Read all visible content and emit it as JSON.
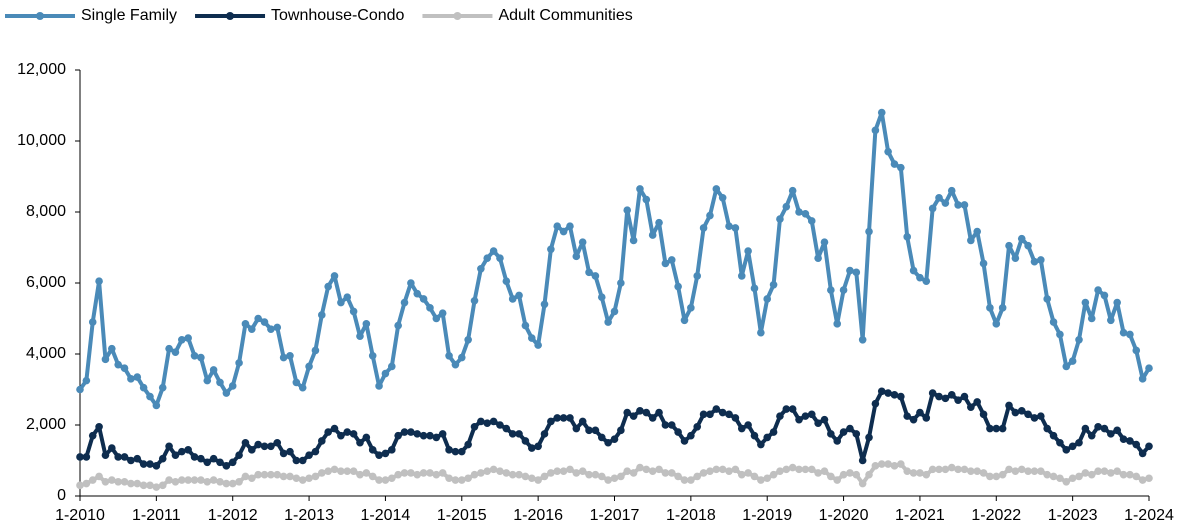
{
  "chart_data": {
    "type": "line",
    "legend": "top-left",
    "categories": [
      "1-2010",
      null,
      null,
      null,
      null,
      null,
      null,
      null,
      null,
      null,
      null,
      null,
      "1-2011",
      null,
      null,
      null,
      null,
      null,
      null,
      null,
      null,
      null,
      null,
      null,
      "1-2012",
      null,
      null,
      null,
      null,
      null,
      null,
      null,
      null,
      null,
      null,
      null,
      "1-2013",
      null,
      null,
      null,
      null,
      null,
      null,
      null,
      null,
      null,
      null,
      null,
      "1-2014",
      null,
      null,
      null,
      null,
      null,
      null,
      null,
      null,
      null,
      null,
      null,
      "1-2015",
      null,
      null,
      null,
      null,
      null,
      null,
      null,
      null,
      null,
      null,
      null,
      "1-2016",
      null,
      null,
      null,
      null,
      null,
      null,
      null,
      null,
      null,
      null,
      null,
      "1-2017",
      null,
      null,
      null,
      null,
      null,
      null,
      null,
      null,
      null,
      null,
      null,
      "1-2018",
      null,
      null,
      null,
      null,
      null,
      null,
      null,
      null,
      null,
      null,
      null,
      "1-2019",
      null,
      null,
      null,
      null,
      null,
      null,
      null,
      null,
      null,
      null,
      null,
      "1-2020",
      null,
      null,
      null,
      null,
      null,
      null,
      null,
      null,
      null,
      null,
      null,
      "1-2021",
      null,
      null,
      null,
      null,
      null,
      null,
      null,
      null,
      null,
      null,
      null,
      "1-2022",
      null,
      null,
      null,
      null,
      null,
      null,
      null,
      null,
      null,
      null,
      null,
      "1-2023",
      null,
      null,
      null,
      null,
      null,
      null,
      null,
      null,
      null,
      null,
      null,
      "1-2024"
    ],
    "series": [
      {
        "name": "Single Family",
        "color": "#4a8ab8",
        "values": [
          3000,
          3250,
          4900,
          6050,
          3850,
          4150,
          3700,
          3600,
          3300,
          3350,
          3050,
          2800,
          2550,
          3050,
          4150,
          4050,
          4400,
          4450,
          3950,
          3900,
          3250,
          3550,
          3200,
          2900,
          3100,
          3750,
          4850,
          4700,
          5000,
          4900,
          4700,
          4750,
          3900,
          3950,
          3200,
          3050,
          3650,
          4100,
          5100,
          5900,
          6200,
          5450,
          5600,
          5200,
          4500,
          4850,
          3950,
          3100,
          3450,
          3650,
          4800,
          5450,
          6000,
          5700,
          5550,
          5300,
          5000,
          5150,
          3950,
          3700,
          3900,
          4400,
          5500,
          6400,
          6700,
          6900,
          6700,
          6050,
          5550,
          5650,
          4800,
          4450,
          4250,
          5400,
          6950,
          7600,
          7450,
          7600,
          6750,
          7150,
          6300,
          6200,
          5600,
          4900,
          5200,
          6000,
          8050,
          7200,
          8650,
          8350,
          7350,
          7700,
          6550,
          6650,
          5900,
          4950,
          5300,
          6200,
          7550,
          7900,
          8650,
          8400,
          7600,
          7550,
          6200,
          6900,
          5850,
          4600,
          5550,
          5950,
          7800,
          8150,
          8600,
          8000,
          7950,
          7750,
          6700,
          7150,
          5800,
          4850,
          5800,
          6350,
          6300,
          4400,
          7450,
          10300,
          10800,
          9700,
          9350,
          9250,
          7300,
          6350,
          6150,
          6050,
          8100,
          8400,
          8250,
          8600,
          8200,
          8200,
          7200,
          7450,
          6550,
          5300,
          4850,
          5300,
          7050,
          6700,
          7250,
          7050,
          6600,
          6650,
          5550,
          4900,
          4550,
          3650,
          3800,
          4400,
          5450,
          5000,
          5800,
          5650,
          4950,
          5450,
          4600,
          4550,
          4100,
          3300,
          3600
        ]
      },
      {
        "name": "Townhouse-Condo",
        "color": "#0e2d4f",
        "values": [
          1100,
          1100,
          1700,
          1950,
          1150,
          1350,
          1100,
          1100,
          1000,
          1050,
          900,
          900,
          850,
          1050,
          1400,
          1150,
          1250,
          1300,
          1100,
          1050,
          950,
          1050,
          950,
          850,
          950,
          1150,
          1500,
          1300,
          1450,
          1400,
          1400,
          1500,
          1200,
          1250,
          1000,
          1000,
          1150,
          1250,
          1550,
          1800,
          1900,
          1700,
          1800,
          1750,
          1500,
          1650,
          1300,
          1150,
          1200,
          1300,
          1700,
          1800,
          1800,
          1750,
          1700,
          1700,
          1650,
          1750,
          1300,
          1250,
          1250,
          1450,
          1950,
          2100,
          2050,
          2100,
          2000,
          1900,
          1750,
          1750,
          1550,
          1350,
          1400,
          1750,
          2100,
          2200,
          2200,
          2200,
          1900,
          2100,
          1850,
          1850,
          1650,
          1500,
          1600,
          1850,
          2350,
          2250,
          2400,
          2350,
          2200,
          2350,
          2000,
          2000,
          1800,
          1550,
          1700,
          1950,
          2300,
          2300,
          2450,
          2350,
          2300,
          2200,
          1900,
          2000,
          1700,
          1450,
          1650,
          1800,
          2250,
          2450,
          2450,
          2150,
          2250,
          2300,
          2050,
          2150,
          1750,
          1550,
          1800,
          1900,
          1750,
          1000,
          1650,
          2600,
          2950,
          2900,
          2850,
          2800,
          2250,
          2150,
          2350,
          2200,
          2900,
          2800,
          2750,
          2850,
          2700,
          2800,
          2500,
          2650,
          2300,
          1900,
          1900,
          1900,
          2550,
          2350,
          2400,
          2300,
          2200,
          2250,
          1900,
          1700,
          1500,
          1300,
          1400,
          1500,
          1900,
          1700,
          1950,
          1900,
          1750,
          1850,
          1600,
          1550,
          1450,
          1200,
          1400
        ]
      },
      {
        "name": "Adult Communities",
        "color": "#c0c0c0",
        "values": [
          300,
          350,
          450,
          550,
          400,
          450,
          400,
          400,
          350,
          350,
          300,
          300,
          250,
          300,
          450,
          400,
          450,
          450,
          450,
          450,
          400,
          450,
          400,
          350,
          350,
          400,
          550,
          500,
          600,
          600,
          600,
          600,
          550,
          550,
          500,
          450,
          500,
          550,
          650,
          700,
          750,
          700,
          700,
          700,
          600,
          650,
          550,
          450,
          450,
          500,
          600,
          650,
          650,
          600,
          650,
          650,
          600,
          650,
          500,
          450,
          450,
          500,
          600,
          650,
          700,
          750,
          700,
          650,
          600,
          600,
          550,
          500,
          450,
          550,
          650,
          700,
          700,
          750,
          650,
          700,
          600,
          600,
          550,
          450,
          500,
          550,
          700,
          650,
          800,
          750,
          700,
          750,
          650,
          650,
          550,
          450,
          450,
          550,
          650,
          700,
          750,
          750,
          700,
          750,
          600,
          650,
          550,
          450,
          500,
          600,
          700,
          750,
          800,
          750,
          750,
          750,
          650,
          700,
          550,
          450,
          600,
          650,
          600,
          350,
          600,
          850,
          900,
          900,
          850,
          900,
          700,
          650,
          650,
          600,
          750,
          750,
          750,
          800,
          750,
          750,
          700,
          700,
          650,
          550,
          550,
          600,
          750,
          700,
          750,
          700,
          700,
          700,
          600,
          550,
          500,
          400,
          500,
          550,
          650,
          600,
          700,
          700,
          650,
          700,
          600,
          600,
          550,
          450,
          500
        ]
      }
    ],
    "ylim": [
      0,
      12000
    ],
    "yticks": [
      0,
      {
        "value": 2000,
        "label": "2,000"
      },
      {
        "value": 4000,
        "label": "4,000"
      },
      {
        "value": 6000,
        "label": "6,000"
      },
      {
        "value": 8000,
        "label": "8,000"
      },
      {
        "value": 10000,
        "label": "10,000"
      },
      {
        "value": 12000,
        "label": "12,000"
      }
    ],
    "grid": false
  }
}
